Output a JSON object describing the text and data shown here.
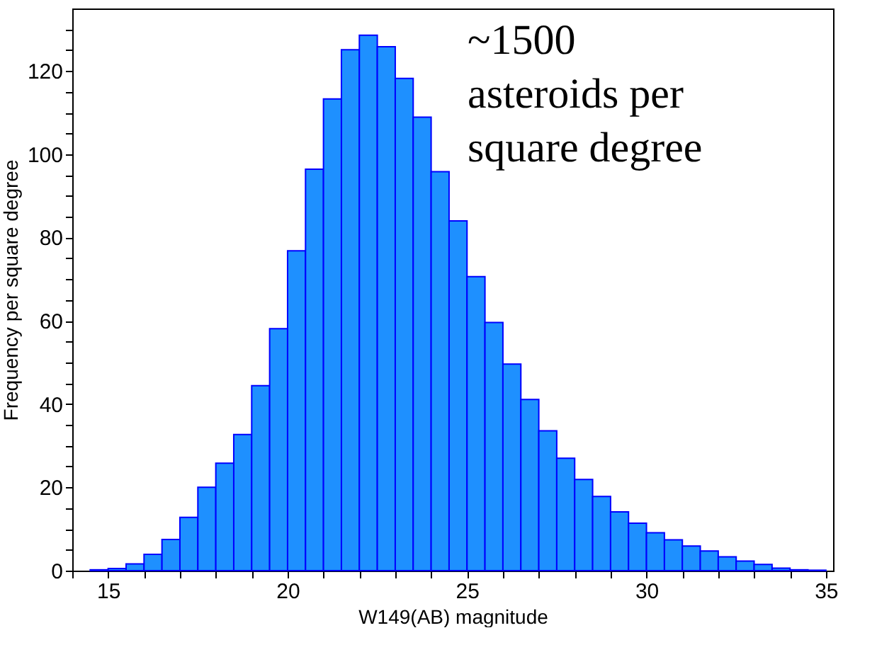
{
  "chart_data": {
    "type": "histogram",
    "xlabel": "W149(AB) magnitude",
    "ylabel": "Frequency per square degree",
    "bins": [
      14.5,
      15,
      15.5,
      16,
      16.5,
      17,
      17.5,
      18,
      18.5,
      19,
      19.5,
      20,
      20.5,
      21,
      21.5,
      22,
      22.5,
      23,
      23.5,
      24,
      24.5,
      25,
      25.5,
      26,
      26.5,
      27,
      27.5,
      28,
      28.5,
      29,
      29.5,
      30,
      30.5,
      31,
      31.5,
      32,
      32.5,
      33,
      33.5,
      34,
      34.5,
      35
    ],
    "values": [
      0.2,
      0.5,
      1.6,
      3.9,
      7.5,
      12.8,
      20,
      25.8,
      32.7,
      44.4,
      58.1,
      76.8,
      96.4,
      113.3,
      125.1,
      128.6,
      125.8,
      118.2,
      108.9,
      95.8,
      84.0,
      70.6,
      59.6,
      49.6,
      41.1,
      33.6,
      27.0,
      21.9,
      17.8,
      14.1,
      11.4,
      9.1,
      7.4,
      5.9,
      4.7,
      3.3,
      2.3,
      1.5,
      0.6,
      0.2,
      0.1
    ],
    "color": "#1e90ff",
    "xlim": [
      14,
      35.2
    ],
    "ylim": [
      0,
      135
    ],
    "xticks": [
      {
        "value": 14,
        "label": null
      },
      15,
      {
        "value": 16,
        "label": null
      },
      {
        "value": 17,
        "label": null
      },
      {
        "value": 18,
        "label": null
      },
      {
        "value": 19,
        "label": null
      },
      20,
      {
        "value": 21,
        "label": null
      },
      {
        "value": 22,
        "label": null
      },
      {
        "value": 23,
        "label": null
      },
      {
        "value": 24,
        "label": null
      },
      25,
      {
        "value": 26,
        "label": null
      },
      {
        "value": 27,
        "label": null
      },
      {
        "value": 28,
        "label": null
      },
      {
        "value": 29,
        "label": null
      },
      30,
      {
        "value": 31,
        "label": null
      },
      {
        "value": 32,
        "label": null
      },
      {
        "value": 33,
        "label": null
      },
      {
        "value": 34,
        "label": null
      },
      35
    ],
    "yticks": [
      0,
      {
        "value": 5,
        "label": null
      },
      {
        "value": 10,
        "label": null
      },
      {
        "value": 15,
        "label": null
      },
      20,
      {
        "value": 25,
        "label": null
      },
      {
        "value": 30,
        "label": null
      },
      {
        "value": 35,
        "label": null
      },
      40,
      {
        "value": 45,
        "label": null
      },
      {
        "value": 50,
        "label": null
      },
      {
        "value": 55,
        "label": null
      },
      60,
      {
        "value": 65,
        "label": null
      },
      {
        "value": 70,
        "label": null
      },
      {
        "value": 75,
        "label": null
      },
      80,
      {
        "value": 85,
        "label": null
      },
      {
        "value": 90,
        "label": null
      },
      {
        "value": 95,
        "label": null
      },
      100,
      {
        "value": 105,
        "label": null
      },
      {
        "value": 110,
        "label": null
      },
      {
        "value": 115,
        "label": null
      },
      120,
      {
        "value": 125,
        "label": null
      },
      {
        "value": 130,
        "label": null
      }
    ],
    "annotations": [
      "~1500\nasteroids per\nsquare degree"
    ],
    "grid": false
  }
}
